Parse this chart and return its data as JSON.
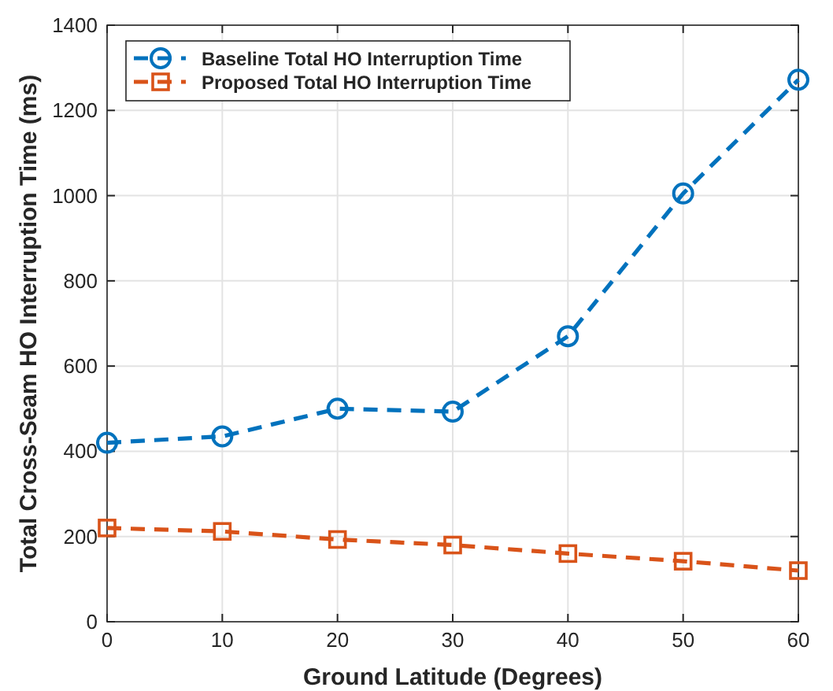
{
  "chart_data": {
    "type": "line",
    "xlabel": "Ground Latitude (Degrees)",
    "ylabel": "Total Cross-Seam HO Interruption Time (ms)",
    "x": [
      0,
      10,
      20,
      30,
      40,
      50,
      60
    ],
    "series": [
      {
        "name": "Baseline Total HO Interruption Time",
        "color": "#0072bd",
        "marker": "circle",
        "values": [
          420,
          435,
          500,
          493,
          670,
          1005,
          1272
        ]
      },
      {
        "name": "Proposed Total HO Interruption Time",
        "color": "#d95319",
        "marker": "square",
        "values": [
          220,
          212,
          193,
          180,
          160,
          142,
          120
        ]
      }
    ],
    "xlim": [
      0,
      60
    ],
    "xticks": [
      0,
      10,
      20,
      30,
      40,
      50,
      60
    ],
    "ylim": [
      0,
      1400
    ],
    "yticks": [
      0,
      200,
      400,
      600,
      800,
      1000,
      1200,
      1400
    ],
    "grid": true,
    "legend": "top left",
    "line_style": "dashed"
  }
}
